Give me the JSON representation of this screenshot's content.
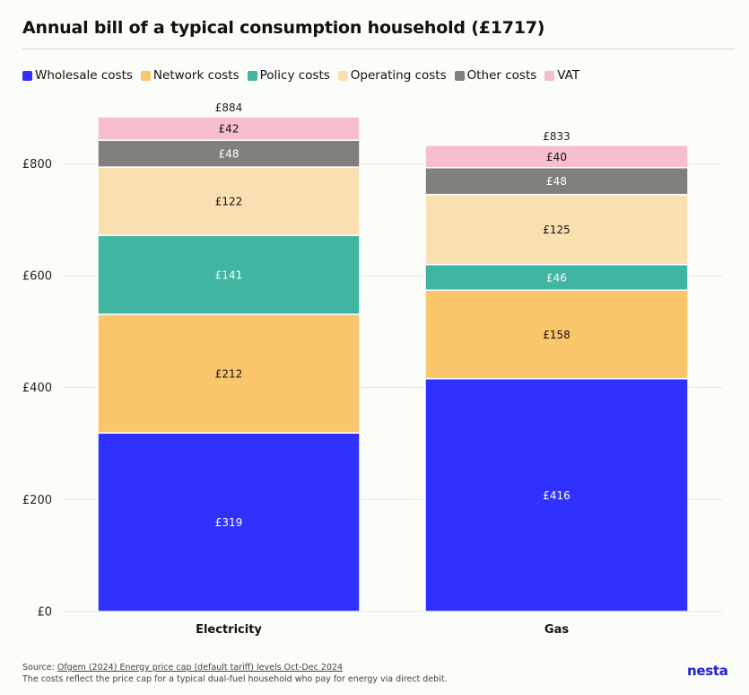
{
  "colors": {
    "wholesale": "#3030ff",
    "network": "#fbc56c",
    "policy": "#40b5a0",
    "operating": "#fae0b0",
    "other": "#7f7f7c",
    "vat": "#f7bfcb",
    "brand": "#1f1fd6"
  },
  "footer": {
    "source_prefix": "Source: ",
    "source_link": "Ofgem (2024) Energy price cap (default tariff) levels Oct-Dec 2024",
    "note": "The costs reflect the price cap for a typical dual-fuel household who pay for energy via direct debit."
  },
  "brand": "nesta",
  "chart_data": {
    "type": "bar",
    "stacked": true,
    "title": "Annual bill of a typical consumption household (£1717)",
    "xlabel": "",
    "ylabel": "",
    "ylim": [
      0,
      884
    ],
    "yticks": [
      0,
      200,
      400,
      600,
      800
    ],
    "ytick_labels": [
      "£0",
      "£200",
      "£400",
      "£600",
      "£800"
    ],
    "grid": true,
    "legend_position": "top-left",
    "categories": [
      "Electricity",
      "Gas"
    ],
    "totals": [
      884,
      833
    ],
    "total_labels": [
      "£884",
      "£833"
    ],
    "series": [
      {
        "key": "wholesale",
        "name": "Wholesale costs",
        "values": [
          319,
          416
        ],
        "labels": [
          "£319",
          "£416"
        ],
        "label_color": "#ffffff"
      },
      {
        "key": "network",
        "name": "Network costs",
        "values": [
          212,
          158
        ],
        "labels": [
          "£212",
          "£158"
        ],
        "label_color": "#111111"
      },
      {
        "key": "policy",
        "name": "Policy costs",
        "values": [
          141,
          46
        ],
        "labels": [
          "£141",
          "£46"
        ],
        "label_color": "#ffffff"
      },
      {
        "key": "operating",
        "name": "Operating costs",
        "values": [
          122,
          125
        ],
        "labels": [
          "£122",
          "£125"
        ],
        "label_color": "#111111"
      },
      {
        "key": "other",
        "name": "Other costs",
        "values": [
          48,
          48
        ],
        "labels": [
          "£48",
          "£48"
        ],
        "label_color": "#ffffff"
      },
      {
        "key": "vat",
        "name": "VAT",
        "values": [
          42,
          40
        ],
        "labels": [
          "£42",
          "£40"
        ],
        "label_color": "#111111"
      }
    ]
  }
}
